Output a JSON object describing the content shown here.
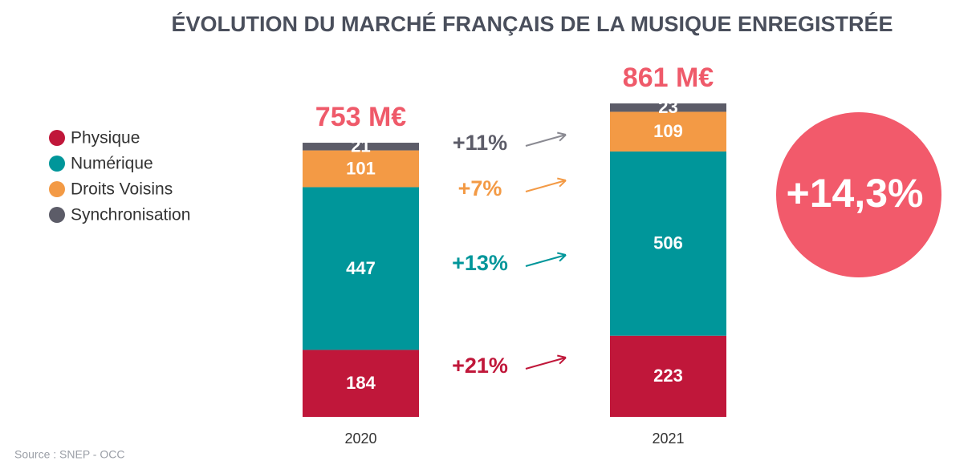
{
  "chart_data": {
    "type": "bar",
    "stacked": true,
    "title": "ÉVOLUTION DU MARCHÉ FRANÇAIS DE LA MUSIQUE ENREGISTRÉE",
    "categories": [
      "2020",
      "2021"
    ],
    "series": [
      {
        "name": "Physique",
        "color": "#c0173a",
        "values": [
          184,
          223
        ]
      },
      {
        "name": "Numérique",
        "color": "#00969a",
        "values": [
          447,
          506
        ]
      },
      {
        "name": "Droits Voisins",
        "color": "#f39a45",
        "values": [
          101,
          109
        ]
      },
      {
        "name": "Synchronisation",
        "color": "#5c5c68",
        "values": [
          21,
          23
        ]
      }
    ],
    "totals": {
      "values": [
        753,
        861
      ],
      "value_labels": [
        "753 M€",
        "861 M€"
      ],
      "color": "#ef5a6a"
    },
    "growth": {
      "values": [
        21,
        13,
        7,
        11
      ],
      "value_labels": [
        "+21%",
        "+13%",
        "+7%",
        "+11%"
      ]
    },
    "total_growth": {
      "value": 14.3,
      "value_label": "+14,3%",
      "color": "#f25a6b"
    },
    "legend": "left",
    "source": "Source : SNEP - OCC"
  }
}
